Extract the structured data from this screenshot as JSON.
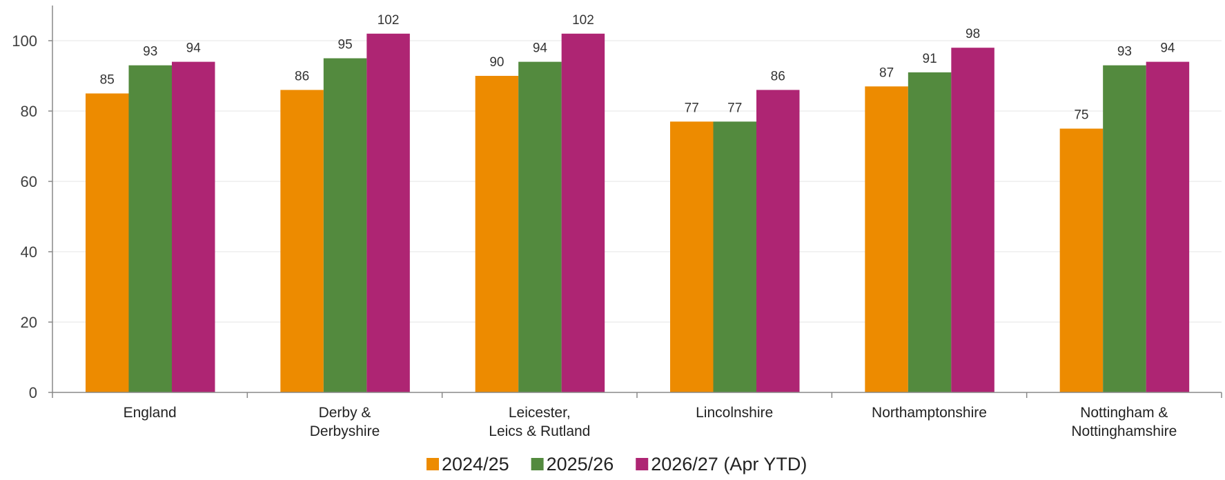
{
  "chart_data": {
    "type": "bar",
    "title": "",
    "xlabel": "",
    "ylabel": "",
    "ylim": [
      0,
      110
    ],
    "yticks": [
      0,
      20,
      40,
      60,
      80,
      100
    ],
    "grid": true,
    "legend_position": "bottom",
    "categories": [
      [
        "England"
      ],
      [
        "Derby &",
        "Derbyshire"
      ],
      [
        "Leicester,",
        "Leics & Rutland"
      ],
      [
        "Lincolnshire"
      ],
      [
        "Northamptonshire"
      ],
      [
        "Nottingham &",
        "Nottinghamshire"
      ]
    ],
    "series": [
      {
        "name": "2024/25",
        "color": "#ED8B00",
        "values": [
          85,
          86,
          90,
          77,
          87,
          75
        ]
      },
      {
        "name": "2025/26",
        "color": "#538A3E",
        "values": [
          93,
          95,
          94,
          77,
          91,
          93
        ]
      },
      {
        "name": "2026/27 (Apr YTD)",
        "color": "#AE2573",
        "values": [
          94,
          102,
          102,
          86,
          98,
          94
        ]
      }
    ]
  }
}
